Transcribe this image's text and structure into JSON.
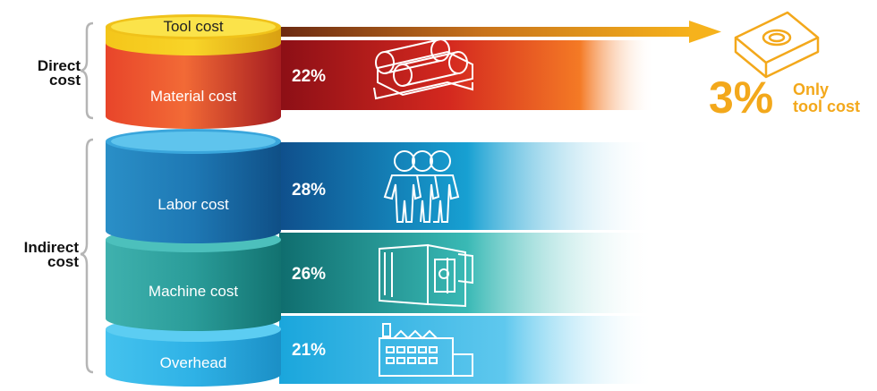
{
  "groups": {
    "direct": "Direct\ncost",
    "indirect": "Indirect\ncost"
  },
  "layers": {
    "tool": "Tool cost",
    "material": "Material cost",
    "labor": "Labor cost",
    "machine": "Machine cost",
    "overhead": "Overhead"
  },
  "percentages": {
    "material": "22%",
    "labor": "28%",
    "machine": "26%",
    "overhead": "21%"
  },
  "callout": {
    "value": "3%",
    "note": "Only\ntool cost"
  },
  "colors": {
    "accent": "#f3a81b",
    "material_band": "#a3141a",
    "labor_band": "#0e5f99",
    "machine_band": "#137c78",
    "overhead_band": "#22b4e6"
  }
}
